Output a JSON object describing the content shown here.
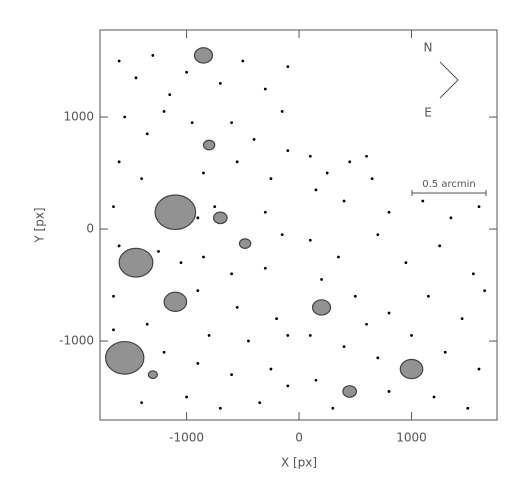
{
  "chart_data": {
    "type": "scatter",
    "xlabel": "X [px]",
    "ylabel": "Y [px]",
    "xlim": [
      -1770,
      1760
    ],
    "ylim": [
      -1705,
      1777
    ],
    "xticks": [
      -1000,
      0,
      1000
    ],
    "yticks": [
      -1000,
      0,
      1000
    ],
    "annotations": [
      "N",
      "E",
      "0.5 arcmin"
    ],
    "series": [
      {
        "color": "#000000",
        "x": [
          -1600,
          -1450,
          -1300,
          -1150,
          -1000,
          -700,
          -500,
          -300,
          -100,
          -1550,
          -1350,
          -1200,
          -950,
          -600,
          -400,
          -150,
          -1600,
          -1400,
          -850,
          -550,
          -250,
          -100,
          -1650,
          -900,
          -300,
          -150,
          -1600,
          -1250,
          -850,
          -600,
          -300,
          -1650,
          -900,
          -550,
          -200,
          -1350,
          -800,
          -450,
          -100,
          -1650,
          -1200,
          -900,
          -600,
          -250,
          -1400,
          -1000,
          -700,
          -350,
          -100,
          -750,
          -1050,
          100,
          250,
          450,
          650,
          150,
          400,
          600,
          800,
          1100,
          1350,
          1600,
          100,
          350,
          700,
          950,
          1250,
          1550,
          200,
          500,
          800,
          1150,
          1450,
          1650,
          100,
          400,
          700,
          1300,
          1600,
          150,
          800,
          1200,
          1500,
          300,
          600,
          1000
        ],
        "values": [
          1500,
          1350,
          1550,
          1200,
          1400,
          1300,
          1500,
          1250,
          1450,
          1000,
          850,
          1050,
          950,
          950,
          800,
          1050,
          600,
          450,
          500,
          600,
          450,
          700,
          200,
          100,
          150,
          -50,
          -150,
          -200,
          -250,
          -400,
          -350,
          -600,
          -550,
          -700,
          -800,
          -850,
          -950,
          -1000,
          -950,
          -900,
          -1100,
          -1200,
          -1300,
          -1250,
          -1550,
          -1500,
          -1600,
          -1550,
          -1400,
          200,
          -300,
          650,
          500,
          600,
          450,
          350,
          250,
          650,
          150,
          250,
          100,
          200,
          -100,
          -250,
          -50,
          -300,
          -150,
          -400,
          -450,
          -600,
          -750,
          -600,
          -800,
          -550,
          -950,
          -1050,
          -1150,
          -1100,
          -1250,
          -1350,
          -1450,
          -1500,
          -1600,
          -1600,
          -850,
          -950
        ]
      },
      {
        "color": "#808080",
        "x": [
          -850,
          -1100,
          -1450,
          -1550,
          -1100,
          -800,
          -700,
          -480,
          200,
          1000,
          450,
          -1300
        ],
        "values": [
          1550,
          150,
          -300,
          -1150,
          -650,
          750,
          100,
          -130,
          -700,
          -1250,
          -1450,
          -1300
        ],
        "sizes": [
          80,
          180,
          150,
          170,
          100,
          50,
          60,
          50,
          80,
          100,
          60,
          40
        ]
      }
    ]
  }
}
